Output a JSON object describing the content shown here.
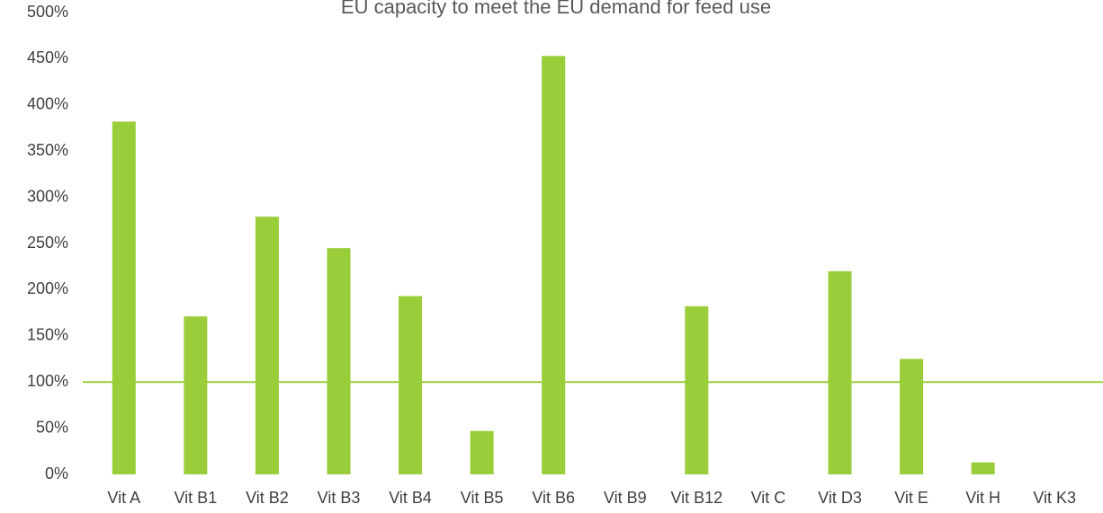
{
  "chart_data": {
    "type": "bar",
    "title": "EU capacity to meet the EU demand for feed use",
    "categories": [
      "Vit A",
      "Vit B1",
      "Vit B2",
      "Vit B3",
      "Vit B4",
      "Vit B5",
      "Vit B6",
      "Vit B9",
      "Vit B12",
      "Vit C",
      "Vit D3",
      "Vit E",
      "Vit H",
      "Vit K3"
    ],
    "values": [
      382,
      171,
      279,
      245,
      193,
      47,
      453,
      0,
      182,
      0,
      220,
      125,
      13,
      0
    ],
    "color": "#9acd3a",
    "reference_line": 100,
    "ylim": [
      0,
      500
    ],
    "yticks": [
      {
        "value": 0,
        "label": "0%"
      },
      {
        "value": 50,
        "label": "50%"
      },
      {
        "value": 100,
        "label": "100%"
      },
      {
        "value": 150,
        "label": "150%"
      },
      {
        "value": 200,
        "label": "200%"
      },
      {
        "value": 250,
        "label": "250%"
      },
      {
        "value": 300,
        "label": "300%"
      },
      {
        "value": 350,
        "label": "350%"
      },
      {
        "value": 400,
        "label": "400%"
      },
      {
        "value": 450,
        "label": "450%"
      },
      {
        "value": 500,
        "label": "500%"
      }
    ],
    "grid": false
  }
}
